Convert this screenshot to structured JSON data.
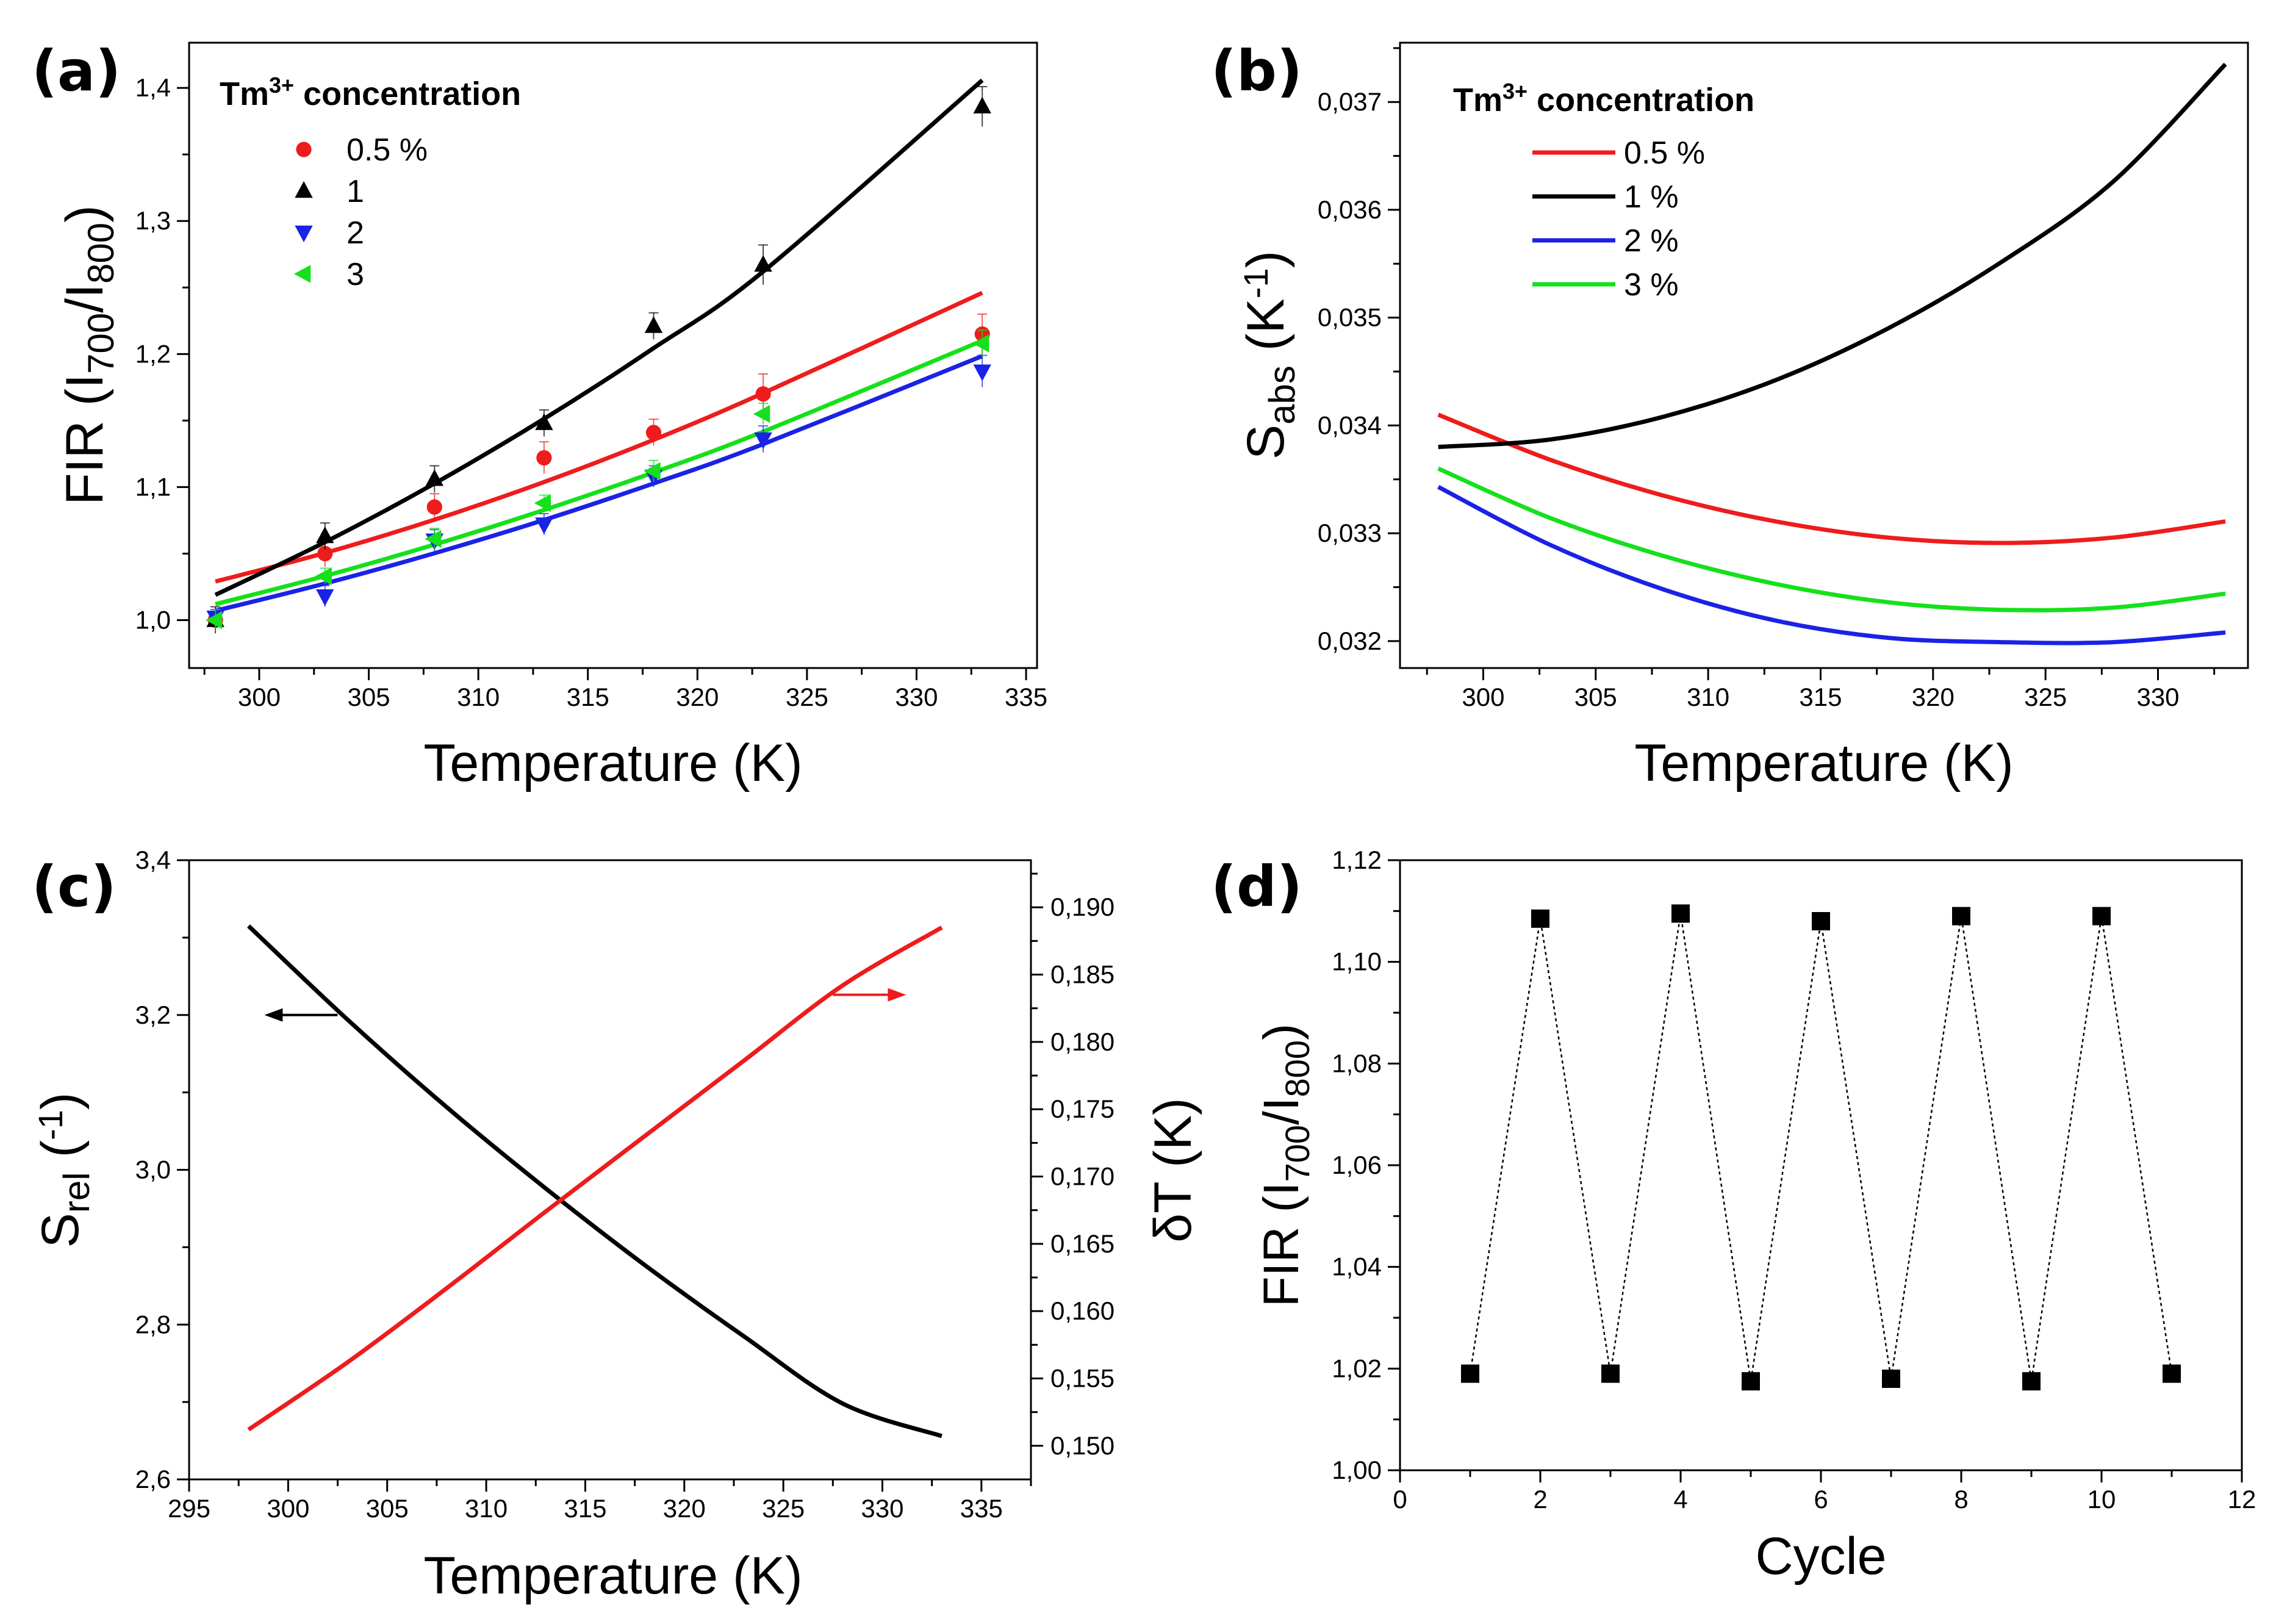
{
  "chart_data": [
    {
      "panel": "(a)",
      "type": "scatter",
      "xlabel": "Temperature (K)",
      "ylabel": {
        "pre": "FIR (I",
        "sub1": "700",
        "mid": "/I",
        "sub2": "800",
        "post": ")"
      },
      "xlim": [
        296.8,
        335.5
      ],
      "ylim": [
        0.964,
        1.434
      ],
      "xticks": [
        300,
        305,
        310,
        315,
        320,
        325,
        330,
        335
      ],
      "yticks": [
        1.0,
        1.1,
        1.2,
        1.3,
        1.4
      ],
      "ytick_labels": [
        "1,0",
        "1,1",
        "1,2",
        "1,3",
        "1,4"
      ],
      "legend": {
        "title_pre": "Tm",
        "title_sup": "3+",
        "title_post": " concentration",
        "position": "top-left"
      },
      "series": [
        {
          "name": "0.5 %",
          "label": "0.5 %",
          "color": "#ee1c1c",
          "marker": "circle",
          "x": [
            298,
            303,
            308,
            313,
            318,
            323,
            333
          ],
          "y": [
            1.0,
            1.05,
            1.085,
            1.122,
            1.141,
            1.17,
            1.215
          ],
          "err": [
            0.008,
            0.01,
            0.01,
            0.012,
            0.01,
            0.015,
            0.015
          ],
          "fit": [
            1.029,
            1.0505,
            1.0755,
            1.1038,
            1.1355,
            1.1706,
            1.246
          ]
        },
        {
          "name": "1 %",
          "label": "1",
          "color": "#000000",
          "marker": "triangle-up",
          "x": [
            298,
            303,
            308,
            313,
            318,
            323,
            333
          ],
          "y": [
            1.0,
            1.063,
            1.106,
            1.148,
            1.221,
            1.267,
            1.386
          ],
          "err": [
            0.01,
            0.01,
            0.01,
            0.01,
            0.01,
            0.015,
            0.015
          ],
          "fit": [
            1.019,
            1.0586,
            1.1027,
            1.1513,
            1.2044,
            1.262,
            1.4058
          ]
        },
        {
          "name": "2 %",
          "label": "2",
          "color": "#1a22e6",
          "marker": "triangle-down",
          "x": [
            298,
            303,
            308,
            313,
            318,
            323,
            333
          ],
          "y": [
            1.002,
            1.018,
            1.06,
            1.072,
            1.108,
            1.136,
            1.187
          ],
          "err": [
            0.006,
            0.008,
            0.008,
            0.008,
            0.008,
            0.01,
            0.012
          ],
          "fit": [
            1.007,
            1.0275,
            1.0503,
            1.0753,
            1.1027,
            1.1323,
            1.1985
          ]
        },
        {
          "name": "3 %",
          "label": "3",
          "color": "#15e01b",
          "marker": "triangle-left",
          "x": [
            298,
            303,
            308,
            313,
            318,
            323,
            333
          ],
          "y": [
            1.0,
            1.033,
            1.061,
            1.088,
            1.112,
            1.155,
            1.208
          ],
          "err": [
            0.008,
            0.006,
            0.008,
            0.006,
            0.008,
            0.008,
            0.01
          ],
          "fit": [
            1.012,
            1.0332,
            1.0568,
            1.0828,
            1.111,
            1.1417,
            1.21
          ]
        }
      ]
    },
    {
      "panel": "(b)",
      "type": "line",
      "xlabel": "Temperature (K)",
      "ylabel": {
        "pre": "S",
        "sub": "abs",
        "mid": " (K",
        "sup": "-1",
        "post": ")"
      },
      "xlim": [
        296.3,
        334
      ],
      "ylim": [
        0.03175,
        0.03755
      ],
      "xticks": [
        300,
        305,
        310,
        315,
        320,
        325,
        330
      ],
      "yticks": [
        0.032,
        0.033,
        0.034,
        0.035,
        0.036,
        0.037
      ],
      "ytick_labels": [
        "0,032",
        "0,033",
        "0,034",
        "0,035",
        "0,036",
        "0,037"
      ],
      "legend": {
        "title_pre": "Tm",
        "title_sup": "3+",
        "title_post": " concentration",
        "position": "top-left"
      },
      "series": [
        {
          "name": "0.5 %",
          "color": "#ee1c1c",
          "x": [
            298,
            303,
            308,
            313,
            318,
            323,
            328,
            333
          ],
          "y": [
            0.0341,
            0.03368,
            0.03335,
            0.03311,
            0.03296,
            0.03291,
            0.03296,
            0.03311
          ]
        },
        {
          "name": "1 %",
          "color": "#000000",
          "x": [
            298,
            303,
            308,
            313,
            318,
            323,
            328,
            333
          ],
          "y": [
            0.0338,
            0.03387,
            0.03408,
            0.03442,
            0.0349,
            0.03551,
            0.03626,
            0.03735
          ]
        },
        {
          "name": "2 %",
          "color": "#1a22e6",
          "x": [
            298,
            303,
            308,
            313,
            318,
            323,
            328,
            333
          ],
          "y": [
            0.03343,
            0.03289,
            0.03248,
            0.03219,
            0.03203,
            0.03199,
            0.03199,
            0.03208
          ]
        },
        {
          "name": "3 %",
          "color": "#15e01b",
          "x": [
            298,
            303,
            308,
            313,
            318,
            323,
            328,
            333
          ],
          "y": [
            0.0336,
            0.03314,
            0.03279,
            0.03253,
            0.03236,
            0.03229,
            0.03231,
            0.03244
          ]
        }
      ]
    },
    {
      "panel": "(c)",
      "type": "line",
      "xlabel": "Temperature (K)",
      "ylabel_left": {
        "pre": "S",
        "sub": "rel",
        "mid": " (",
        "sup": "-1",
        "post": ")"
      },
      "ylabel_right": "δT (K)",
      "xlim": [
        295,
        337.5
      ],
      "ylim_left": [
        2.6,
        3.4
      ],
      "ylim_right": [
        0.1475,
        0.1935
      ],
      "xticks": [
        295,
        300,
        305,
        310,
        315,
        320,
        325,
        330,
        335
      ],
      "yticks_left": [
        2.6,
        2.8,
        3.0,
        3.2,
        3.4
      ],
      "ytick_labels_left": [
        "2,6",
        "2,8",
        "3,0",
        "3,2",
        "3,4"
      ],
      "yticks_right": [
        0.15,
        0.155,
        0.16,
        0.165,
        0.17,
        0.175,
        0.18,
        0.185,
        0.19
      ],
      "ytick_labels_right": [
        "0,150",
        "0,155",
        "0,160",
        "0,165",
        "0,170",
        "0,175",
        "0,180",
        "0,185",
        "0,190"
      ],
      "series": [
        {
          "name": "Srel",
          "axis": "left",
          "color": "#000000",
          "x": [
            298,
            303,
            308,
            313,
            318,
            323,
            328,
            333
          ],
          "y": [
            3.315,
            3.194,
            3.081,
            2.976,
            2.877,
            2.785,
            2.698,
            2.656
          ]
        },
        {
          "name": "dT",
          "axis": "right",
          "color": "#ee1c1c",
          "x": [
            298,
            303,
            308,
            313,
            318,
            323,
            328,
            333
          ],
          "y": [
            0.1512,
            0.1562,
            0.1617,
            0.1674,
            0.173,
            0.1786,
            0.1842,
            0.1885
          ]
        }
      ],
      "arrows": [
        {
          "direction": "left",
          "color": "#000000",
          "at_x": 298.8,
          "at_y": 3.2,
          "axis": "left"
        },
        {
          "direction": "right",
          "color": "#ee1c1c",
          "at_x": 331.2,
          "at_y": 0.1835,
          "axis": "right"
        }
      ]
    },
    {
      "panel": "(d)",
      "type": "scatter",
      "xlabel": "Cycle",
      "ylabel": {
        "pre": "FIR (I",
        "sub1": "700",
        "mid": "/I",
        "sub2": "800",
        "post": ")"
      },
      "xlim": [
        0,
        12
      ],
      "ylim": [
        1.0,
        1.12
      ],
      "xticks": [
        0,
        2,
        4,
        6,
        8,
        10,
        12
      ],
      "yticks": [
        1.0,
        1.02,
        1.04,
        1.06,
        1.08,
        1.1,
        1.12
      ],
      "ytick_labels": [
        "1,00",
        "1,02",
        "1,04",
        "1,06",
        "1,08",
        "1,10",
        "1,12"
      ],
      "series": [
        {
          "name": "cycle",
          "color": "#000000",
          "marker": "square",
          "line": "dotted",
          "x": [
            1,
            2,
            3,
            4,
            5,
            6,
            7,
            8,
            9,
            10,
            11
          ],
          "y": [
            1.019,
            1.1085,
            1.019,
            1.1095,
            1.0175,
            1.108,
            1.018,
            1.109,
            1.0175,
            1.109,
            1.019
          ]
        }
      ]
    }
  ]
}
